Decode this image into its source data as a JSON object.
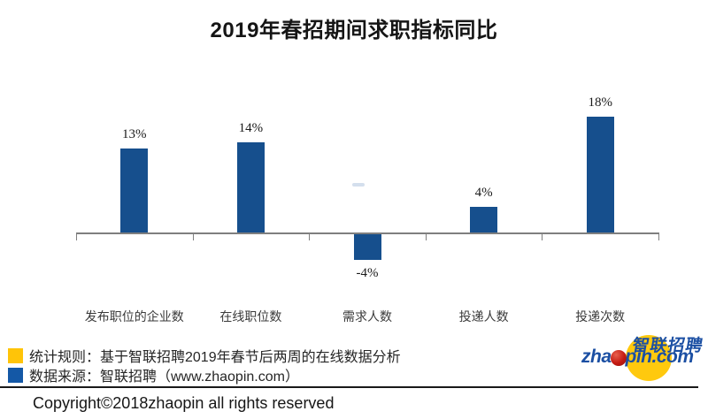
{
  "title": "2019年春招期间求职指标同比",
  "chart_data": {
    "type": "bar",
    "title": "2019年春招期间求职指标同比",
    "categories": [
      "发布职位的企业数",
      "在线职位数",
      "需求人数",
      "投递人数",
      "投递次数"
    ],
    "values": [
      13,
      14,
      -4,
      4,
      18
    ],
    "value_labels": [
      "13%",
      "14%",
      "-4%",
      "4%",
      "18%"
    ],
    "xlabel": "",
    "ylabel": "",
    "ylim": [
      -6,
      20
    ],
    "grid": false,
    "legend_position": "none",
    "bar_color": "#164F8D",
    "axis_color": "#7f7f7f"
  },
  "legend": {
    "items": [
      {
        "swatch_color": "#FFC408",
        "text": "统计规则：基于智联招聘2019年春节后两周的在线数据分析"
      },
      {
        "swatch_color": "#1458A6",
        "text": "数据来源：智联招聘（www.zhaopin.com）"
      }
    ]
  },
  "logo": {
    "cn_text": "智联招聘",
    "latin_prefix": "zha",
    "latin_suffix": "pin.com",
    "circle_color": "#FFC90E",
    "text_color": "#1B4FA3",
    "dot_color": "#C41A12"
  },
  "footer": {
    "copyright": "Copyright©2018zhaopin all rights reserved"
  }
}
